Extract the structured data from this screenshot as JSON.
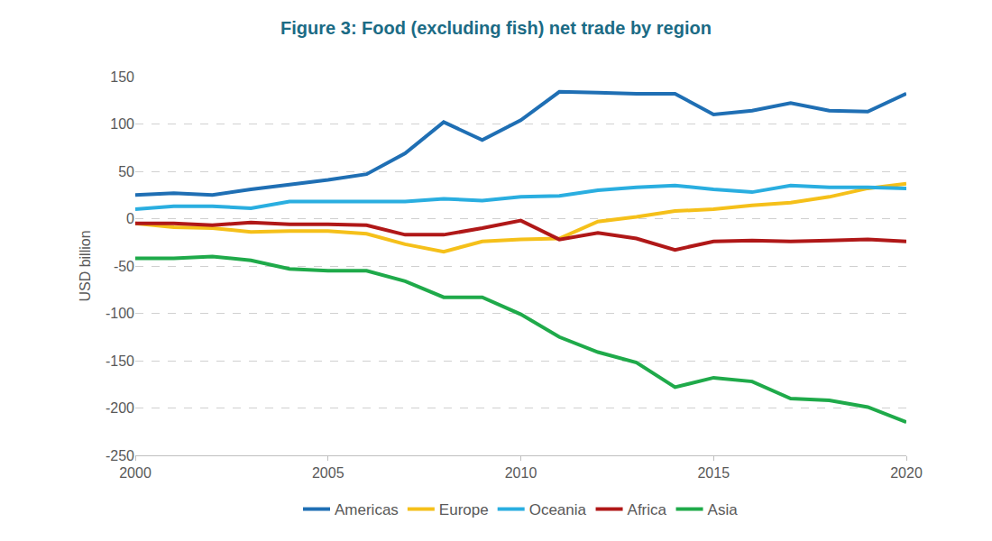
{
  "chart_data": {
    "type": "line",
    "title": "Figure 3: Food (excluding fish) net trade by region",
    "y_label": "USD billion",
    "x": [
      2000,
      2001,
      2002,
      2003,
      2004,
      2005,
      2006,
      2007,
      2008,
      2009,
      2010,
      2011,
      2012,
      2013,
      2014,
      2015,
      2016,
      2017,
      2018,
      2019,
      2020
    ],
    "series": [
      {
        "name": "Americas",
        "color": "#1f6fb4",
        "values": [
          25,
          27,
          25,
          31,
          36,
          41,
          47,
          69,
          102,
          83,
          104,
          134,
          133,
          132,
          132,
          110,
          114,
          122,
          114,
          113,
          132
        ]
      },
      {
        "name": "Europe",
        "color": "#f5c01a",
        "values": [
          -5,
          -9,
          -10,
          -14,
          -13,
          -13,
          -16,
          -27,
          -35,
          -24,
          -22,
          -21,
          -3,
          2,
          8,
          10,
          14,
          17,
          23,
          32,
          37
        ]
      },
      {
        "name": "Oceania",
        "color": "#2aaee0",
        "values": [
          10,
          13,
          13,
          11,
          18,
          18,
          18,
          18,
          21,
          19,
          23,
          24,
          30,
          33,
          35,
          31,
          28,
          35,
          33,
          33,
          32
        ]
      },
      {
        "name": "Africa",
        "color": "#b01818",
        "values": [
          -5,
          -5,
          -7,
          -4,
          -6,
          -6,
          -7,
          -17,
          -17,
          -10,
          -2,
          -22,
          -15,
          -21,
          -33,
          -24,
          -23,
          -24,
          -23,
          -22,
          -24
        ]
      },
      {
        "name": "Asia",
        "color": "#1faa4a",
        "values": [
          -42,
          -42,
          -40,
          -44,
          -53,
          -55,
          -55,
          -66,
          -83,
          -83,
          -101,
          -125,
          -141,
          -152,
          -178,
          -168,
          -172,
          -190,
          -192,
          -199,
          -215
        ]
      }
    ],
    "xlim": [
      2000,
      2020
    ],
    "xticks": [
      2000,
      2005,
      2010,
      2015,
      2020
    ],
    "ylim": [
      -250,
      150
    ],
    "yticks": [
      -250,
      -200,
      -150,
      -100,
      -50,
      0,
      50,
      100,
      150
    ],
    "grid": true,
    "legend": "bottom"
  }
}
